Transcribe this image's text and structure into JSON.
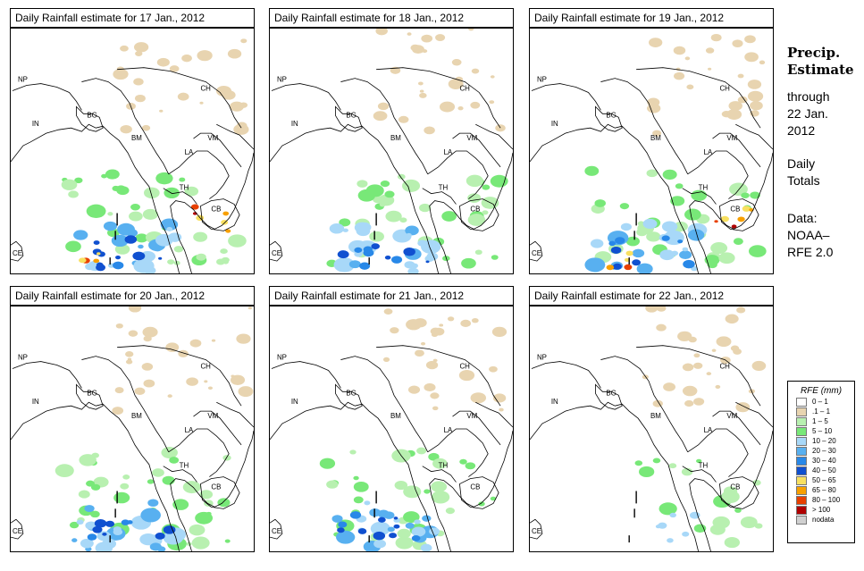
{
  "panels": [
    {
      "title": "Daily Rainfall estimate for  17 Jan., 2012",
      "intensity": "heavy"
    },
    {
      "title": "Daily Rainfall estimate for  18 Jan., 2012",
      "intensity": "moderate"
    },
    {
      "title": "Daily Rainfall estimate for  19 Jan., 2012",
      "intensity": "heavy"
    },
    {
      "title": "Daily Rainfall estimate for  20 Jan., 2012",
      "intensity": "moderate"
    },
    {
      "title": "Daily Rainfall estimate for  21 Jan., 2012",
      "intensity": "moderate"
    },
    {
      "title": "Daily Rainfall estimate for  22 Jan., 2012",
      "intensity": "light"
    }
  ],
  "country_labels": [
    "NP",
    "IN",
    "BG",
    "BM",
    "CH",
    "VM",
    "LA",
    "TH",
    "CB",
    "CE"
  ],
  "sidebar": {
    "title_line1": "Precip.",
    "title_line2": "Estimate",
    "through_line1": "through",
    "through_line2": "22 Jan.",
    "through_line3": "2012",
    "daily_line1": "Daily",
    "daily_line2": "Totals",
    "data_line1": "Data:",
    "data_line2": "NOAA–",
    "data_line3": "RFE 2.0"
  },
  "legend": {
    "title": "RFE (mm)",
    "items": [
      {
        "label": "0 – 1",
        "color": "#ffffff"
      },
      {
        "label": ".1 – 1",
        "color": "#e8d4b0"
      },
      {
        "label": "1 – 5",
        "color": "#b8f0b0"
      },
      {
        "label": "5 – 10",
        "color": "#78e878"
      },
      {
        "label": "10 – 20",
        "color": "#a8d8f8"
      },
      {
        "label": "20 – 30",
        "color": "#58b0f0"
      },
      {
        "label": "30 – 40",
        "color": "#2888e8"
      },
      {
        "label": "40 – 50",
        "color": "#1050d0"
      },
      {
        "label": "50 – 65",
        "color": "#f8e060"
      },
      {
        "label": "65 – 80",
        "color": "#f8a000"
      },
      {
        "label": "80 – 100",
        "color": "#e84000"
      },
      {
        "label": "> 100",
        "color": "#b00000"
      },
      {
        "label": "nodata",
        "color": "#d0d0d0"
      }
    ]
  }
}
